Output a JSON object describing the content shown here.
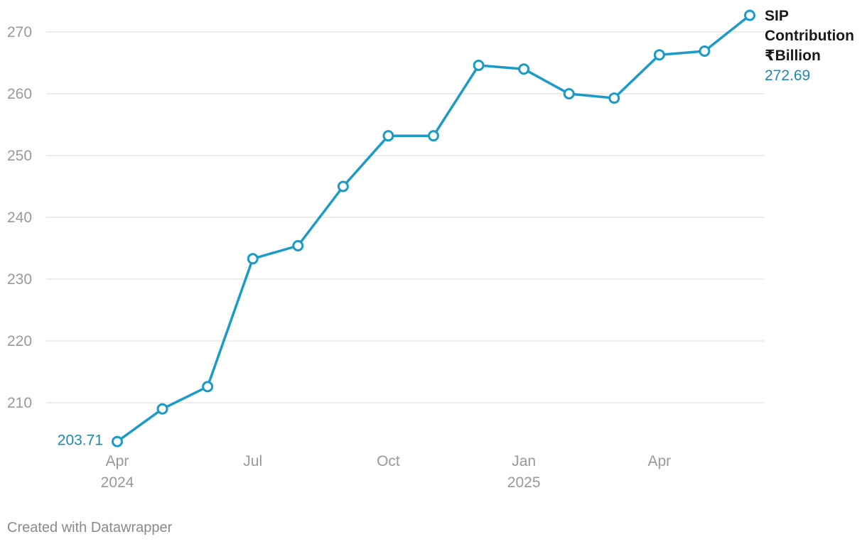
{
  "chart_data": {
    "type": "line",
    "series": [
      {
        "name": "SIP Contribution ₹Billion",
        "label_lines": [
          "SIP",
          "Contribution",
          " ₹Billion"
        ],
        "color": "#1c9bc7",
        "points": [
          {
            "x": "2024-04",
            "y": 203.71
          },
          {
            "x": "2024-05",
            "y": 209.0
          },
          {
            "x": "2024-06",
            "y": 212.6
          },
          {
            "x": "2024-07",
            "y": 233.3
          },
          {
            "x": "2024-08",
            "y": 235.4
          },
          {
            "x": "2024-09",
            "y": 245.0
          },
          {
            "x": "2024-10",
            "y": 253.2
          },
          {
            "x": "2024-11",
            "y": 253.2
          },
          {
            "x": "2024-12",
            "y": 264.6
          },
          {
            "x": "2025-01",
            "y": 264.0
          },
          {
            "x": "2025-02",
            "y": 260.0
          },
          {
            "x": "2025-03",
            "y": 259.3
          },
          {
            "x": "2025-04",
            "y": 266.3
          },
          {
            "x": "2025-05",
            "y": 266.9
          },
          {
            "x": "2025-06",
            "y": 272.69
          }
        ]
      }
    ],
    "start_label": "203.71",
    "end_label": "272.69",
    "y_ticks": [
      "210",
      "220",
      "230",
      "240",
      "250",
      "260",
      "270"
    ],
    "ylim": [
      203,
      273
    ],
    "x_ticks": [
      {
        "x": "2024-04",
        "label": "Apr",
        "year": "2024"
      },
      {
        "x": "2024-07",
        "label": "Jul",
        "year": ""
      },
      {
        "x": "2024-10",
        "label": "Oct",
        "year": ""
      },
      {
        "x": "2025-01",
        "label": "Jan",
        "year": "2025"
      },
      {
        "x": "2025-04",
        "label": "Apr",
        "year": ""
      }
    ],
    "grid": true,
    "title": "",
    "xlabel": "",
    "ylabel": ""
  },
  "footer": {
    "credit": "Created with Datawrapper"
  },
  "colors": {
    "line": "#1c9bc7",
    "grid": "#e0e0e0",
    "tick_text": "#999999",
    "label_text": "#1a8ab3"
  }
}
